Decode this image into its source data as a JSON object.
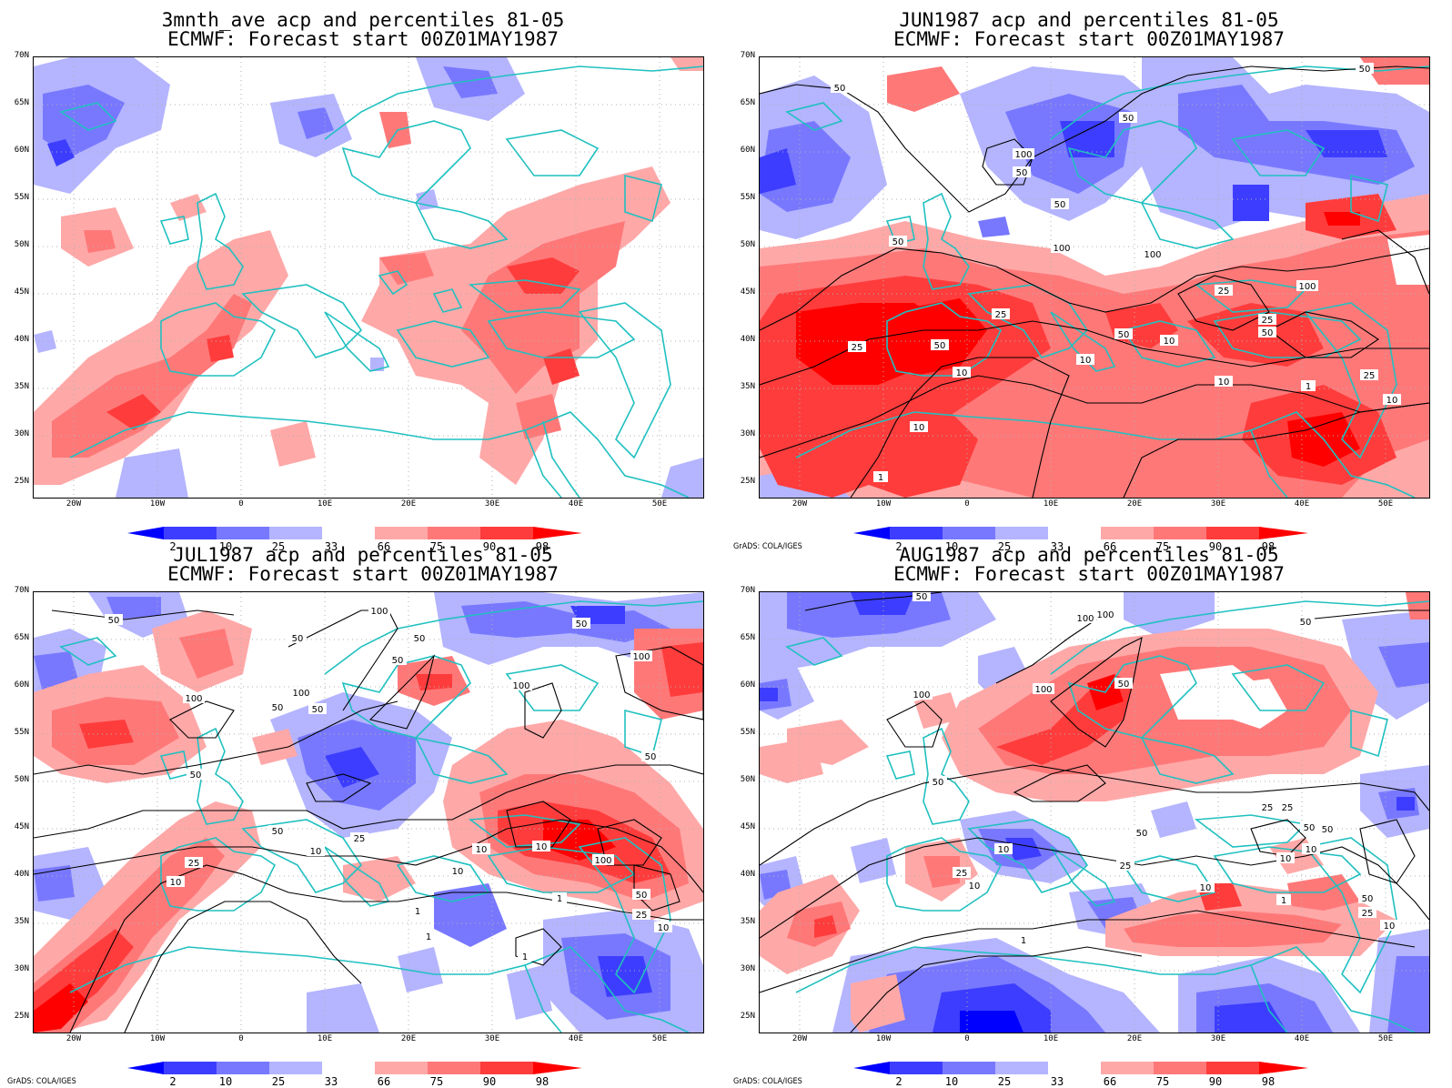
{
  "figure": {
    "palette": {
      "below": [
        "#0000ff",
        "#3d3dff",
        "#7878ff",
        "#b4b4ff"
      ],
      "above": [
        "#ffa8a8",
        "#ff7878",
        "#ff3c3c",
        "#ff0000"
      ],
      "coast": "#20c0c0",
      "grid": "#b0b0b0"
    },
    "colorbar_labels": [
      "2",
      "10",
      "25",
      "33",
      "66",
      "75",
      "90",
      "98"
    ],
    "lat_labels": [
      "70N",
      "65N",
      "60N",
      "55N",
      "50N",
      "45N",
      "40N",
      "35N",
      "30N",
      "25N"
    ],
    "lon_labels": [
      "20W",
      "10W",
      "0",
      "10E",
      "20E",
      "30E",
      "40E",
      "50E"
    ],
    "credit": "GrADS: COLA/IGES"
  },
  "panels": [
    {
      "id": "p1",
      "title_line1": "3mnth_ave acp and percentiles 81-05",
      "title_line2": "ECMWF: Forecast start 00Z01MAY1987",
      "show_credit": false,
      "contour_labels": []
    },
    {
      "id": "p2",
      "title_line1": "JUN1987 acp and percentiles 81-05",
      "title_line2": "ECMWF: Forecast start 00Z01MAY1987",
      "show_credit": true,
      "contour_labels": [
        "50",
        "50",
        "100",
        "50",
        "50",
        "50",
        "100",
        "100",
        "25",
        "50",
        "25",
        "50",
        "10",
        "25",
        "100",
        "25",
        "50",
        "10",
        "10",
        "50",
        "10",
        "25",
        "1",
        "10",
        "10",
        "1"
      ]
    },
    {
      "id": "p3",
      "title_line1": "JUL1987 acp and percentiles 81-05",
      "title_line2": "ECMWF: Forecast start 00Z01MAY1987",
      "show_credit": true,
      "contour_labels": [
        "50",
        "100",
        "50",
        "50",
        "50",
        "100",
        "50",
        "100",
        "100",
        "50",
        "50",
        "100",
        "50",
        "50",
        "10",
        "25",
        "25",
        "50",
        "10",
        "10",
        "10",
        "10",
        "100",
        "1",
        "1",
        "50",
        "25",
        "10",
        "1",
        "1"
      ]
    },
    {
      "id": "p4",
      "title_line1": "AUG1987 acp and percentiles 81-05",
      "title_line2": "ECMWF: Forecast start 00Z01MAY1987",
      "show_credit": true,
      "contour_labels": [
        "50",
        "100",
        "100",
        "50",
        "50",
        "100",
        "50",
        "100",
        "50",
        "25",
        "25",
        "50",
        "10",
        "25",
        "10",
        "10",
        "25",
        "50",
        "10",
        "1",
        "10",
        "1",
        "50",
        "25",
        "10"
      ]
    }
  ]
}
